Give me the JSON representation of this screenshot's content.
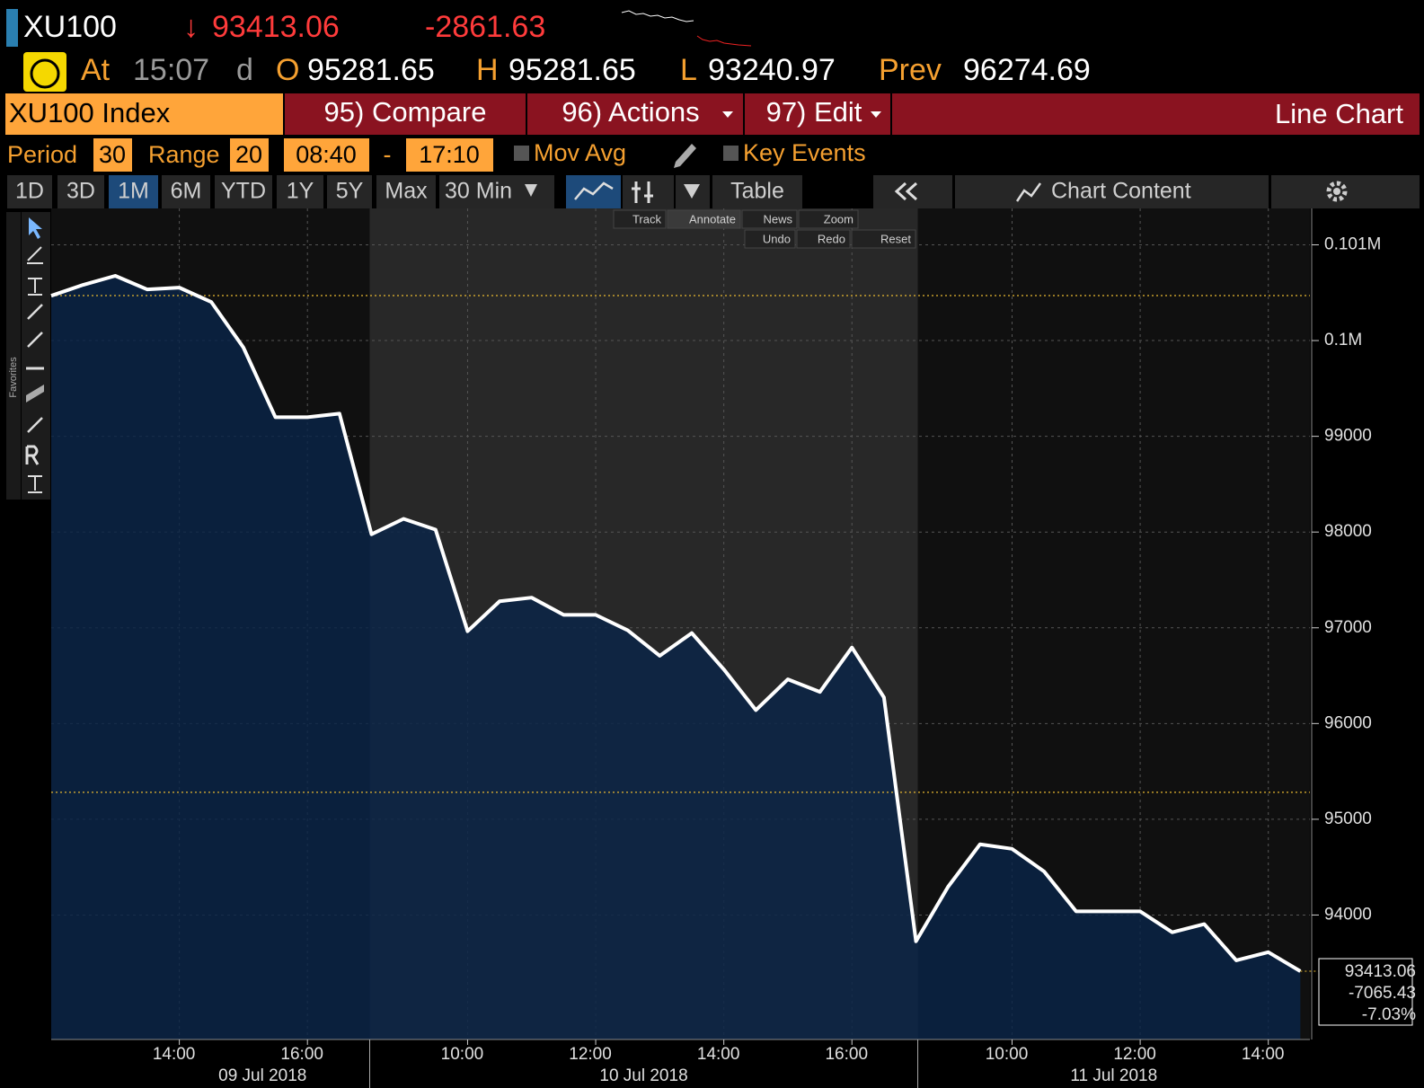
{
  "header": {
    "ticker": "XU100",
    "arrow": "↓",
    "last": "93413.06",
    "change": "-2861.63",
    "at_label": "At",
    "time": "15:07",
    "time_flag": "d",
    "open_label": "O",
    "open": "95281.65",
    "high_label": "H",
    "high": "95281.65",
    "low_label": "L",
    "low": "93240.97",
    "prev_label": "Prev",
    "prev": "96274.69"
  },
  "toolbar": {
    "security": "XU100 Index",
    "compare": "95) Compare",
    "actions": "96) Actions",
    "edit": "97) Edit",
    "chart_name": "Line Chart"
  },
  "settings": {
    "period_label": "Period",
    "period": "30",
    "range_label": "Range",
    "range": "20",
    "start": "08:40",
    "dash": "-",
    "end": "17:10",
    "mov_avg": "Mov Avg",
    "key_events": "Key Events"
  },
  "tabs": [
    "1D",
    "3D",
    "1M",
    "6M",
    "YTD",
    "1Y",
    "5Y",
    "Max"
  ],
  "selected_tab": 2,
  "interval": "30 Min",
  "table": "Table",
  "chart_content": "Chart Content",
  "chart_tools": [
    "Track",
    "Annotate",
    "News",
    "Zoom",
    "Undo",
    "Redo",
    "Reset"
  ],
  "sidebar_label": "Favorites",
  "chart_data": {
    "type": "line",
    "categories": [
      null,
      null,
      null,
      null,
      "14:00",
      null,
      null,
      null,
      "16:00",
      null,
      null,
      null,
      null,
      "10:00",
      null,
      null,
      null,
      "12:00",
      null,
      null,
      null,
      "14:00",
      null,
      null,
      null,
      "16:00",
      null,
      null,
      null,
      null,
      "10:00",
      null,
      null,
      null,
      "12:00",
      null,
      null,
      null,
      "14:00",
      null
    ],
    "values": [
      100468,
      100582,
      100676,
      100534,
      100553,
      100402,
      99928,
      99199,
      99199,
      99237,
      97977,
      98138,
      98025,
      96964,
      97277,
      97315,
      97135,
      97135,
      96974,
      96708,
      96945,
      96566,
      96140,
      96462,
      96330,
      96794,
      96273,
      93725,
      94294,
      94739,
      94691,
      94455,
      94038,
      94038,
      94038,
      93820,
      93905,
      93526,
      93612,
      93413.06
    ],
    "color": "#ffffff",
    "ylim": [
      92700,
      101380
    ],
    "yticks": [
      94000,
      95000,
      96000,
      97000,
      98000,
      99000,
      {
        "value": 100000,
        "label": "0.1M"
      },
      {
        "value": 101000,
        "label": "0.101M"
      }
    ],
    "grid": true,
    "date_labels": [
      "09 Jul 2018",
      "10 Jul 2018",
      "11 Jul 2018"
    ],
    "reference_lines": [
      100470,
      95281.65
    ],
    "last_value_labels": [
      "93413.06",
      "-7065.43",
      "-7.03%"
    ]
  }
}
